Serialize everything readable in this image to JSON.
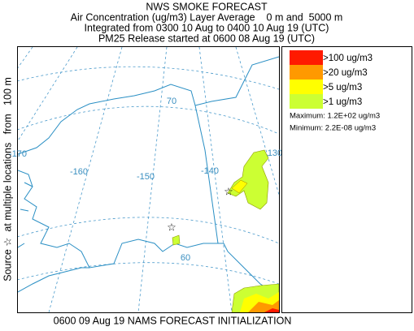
{
  "header": {
    "title": "NWS SMOKE FORECAST",
    "lines": [
      "Air Concentration (ug/m3) Layer Average    0 m and  5000 m",
      "Integrated from 0300 10 Aug to 0400 10 Aug 19 (UTC)",
      "PM25 Release started at 0600 08 Aug 19 (UTC)"
    ]
  },
  "side_label": "Source ☆  at multiple locations   from   100 m",
  "footer": "0600 09 Aug 19 NAMS FORECAST INITIALIZATION",
  "legend": {
    "items": [
      {
        "label": ">100 ug/m3",
        "color": "#ff1a00"
      },
      {
        "label": ">20 ug/m3",
        "color": "#ff9900"
      },
      {
        "label": ">5 ug/m3",
        "color": "#ffff00"
      },
      {
        "label": ">1 ug/m3",
        "color": "#ccff33"
      }
    ],
    "maximum": "Maximum: 1.2E+02 ug/m3",
    "minimum": "Minimum: 2.2E-08 ug/m3"
  },
  "map": {
    "labels": [
      "70",
      "-170",
      "-160",
      "-150",
      "-140",
      "130",
      "60"
    ]
  }
}
